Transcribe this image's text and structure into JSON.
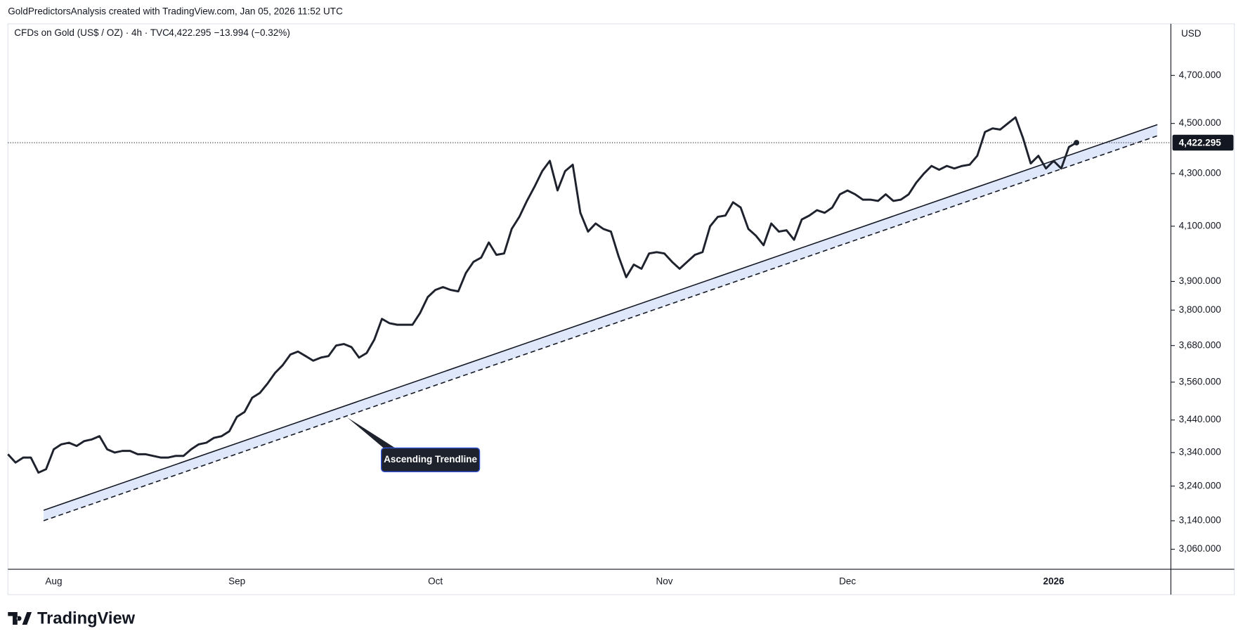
{
  "header": {
    "attribution": "GoldPredictorsAnalysis created with TradingView.com, Jan 05, 2026 11:52 UTC",
    "symbol": "CFDs on Gold (US$ / OZ) · 4h · TVC",
    "last": "4,422.295",
    "change": "−13.994 (−0.32%)"
  },
  "footer": {
    "brand": "TradingView"
  },
  "chart_data": {
    "type": "line",
    "log_scale": true,
    "y_axis_label": "USD",
    "categories": [
      null,
      null,
      null,
      null,
      null,
      null,
      "Aug",
      null,
      null,
      null,
      null,
      null,
      null,
      null,
      null,
      null,
      null,
      null,
      null,
      null,
      null,
      null,
      null,
      null,
      null,
      null,
      null,
      null,
      null,
      null,
      "Sep",
      null,
      null,
      null,
      null,
      null,
      null,
      null,
      null,
      null,
      null,
      null,
      null,
      null,
      null,
      null,
      null,
      null,
      null,
      null,
      null,
      null,
      null,
      null,
      null,
      null,
      "Oct",
      null,
      null,
      null,
      null,
      null,
      null,
      null,
      null,
      null,
      null,
      null,
      null,
      null,
      null,
      null,
      null,
      null,
      null,
      null,
      null,
      null,
      null,
      null,
      null,
      null,
      null,
      null,
      null,
      null,
      "Nov",
      null,
      null,
      null,
      null,
      null,
      null,
      null,
      null,
      null,
      null,
      null,
      null,
      null,
      null,
      null,
      null,
      null,
      null,
      null,
      null,
      null,
      null,
      null,
      "Dec",
      null,
      null,
      null,
      null,
      null,
      null,
      null,
      null,
      null,
      null,
      null,
      null,
      null,
      null,
      null,
      null,
      null,
      null,
      null,
      null,
      null,
      null,
      null,
      null,
      null,
      null,
      "2026",
      null,
      null,
      null
    ],
    "series": [
      {
        "color": "#1e222d",
        "values": [
          3335,
          3310,
          3325,
          3325,
          3280,
          3290,
          3350,
          3365,
          3370,
          3360,
          3375,
          3380,
          3390,
          3350,
          3340,
          3345,
          3345,
          3335,
          3335,
          3330,
          3325,
          3325,
          3330,
          3330,
          3350,
          3365,
          3370,
          3385,
          3390,
          3405,
          3450,
          3465,
          3510,
          3525,
          3555,
          3590,
          3615,
          3650,
          3660,
          3645,
          3630,
          3640,
          3645,
          3680,
          3685,
          3675,
          3640,
          3655,
          3700,
          3770,
          3755,
          3750,
          3750,
          3750,
          3790,
          3845,
          3870,
          3880,
          3870,
          3865,
          3930,
          3970,
          3985,
          4040,
          3995,
          4000,
          4090,
          4135,
          4195,
          4250,
          4310,
          4350,
          4235,
          4310,
          4335,
          4150,
          4080,
          4110,
          4090,
          4080,
          3990,
          3915,
          3960,
          3945,
          4000,
          4005,
          4000,
          3970,
          3945,
          3970,
          3995,
          4005,
          4100,
          4135,
          4140,
          4190,
          4170,
          4090,
          4065,
          4030,
          4110,
          4080,
          4085,
          4050,
          4125,
          4140,
          4160,
          4150,
          4170,
          4220,
          4235,
          4220,
          4200,
          4200,
          4195,
          4220,
          4195,
          4200,
          4220,
          4265,
          4300,
          4330,
          4315,
          4330,
          4320,
          4330,
          4335,
          4370,
          4465,
          4480,
          4475,
          4500,
          4525,
          4440,
          4340,
          4370,
          4320,
          4350,
          4320,
          4405,
          4422.295
        ]
      }
    ],
    "ylim": [
      3005,
      4925
    ],
    "yticks": [
      {
        "value": 3060,
        "label": "3,060.000"
      },
      {
        "value": 3140,
        "label": "3,140.000"
      },
      {
        "value": 3240,
        "label": "3,240.000"
      },
      {
        "value": 3340,
        "label": "3,340.000"
      },
      {
        "value": 3440,
        "label": "3,440.000"
      },
      {
        "value": 3560,
        "label": "3,560.000"
      },
      {
        "value": 3680,
        "label": "3,680.000"
      },
      {
        "value": 3800,
        "label": "3,800.000"
      },
      {
        "value": 3900,
        "label": "3,900.000"
      },
      {
        "value": 4100,
        "label": "4,100.000"
      },
      {
        "value": 4300,
        "label": "4,300.000"
      },
      {
        "value": 4500,
        "label": "4,500.000"
      },
      {
        "value": 4700,
        "label": "4,700.000"
      }
    ],
    "last_price": {
      "value": 4422.295,
      "label": "4,422.295"
    },
    "trendlines": [
      {
        "style": "solid",
        "start": 3170,
        "end": 4495
      },
      {
        "style": "dashed",
        "start": 3140,
        "end": 4450
      }
    ],
    "band_color": "#dfe7fb",
    "annotation": "Ascending Trendline"
  }
}
